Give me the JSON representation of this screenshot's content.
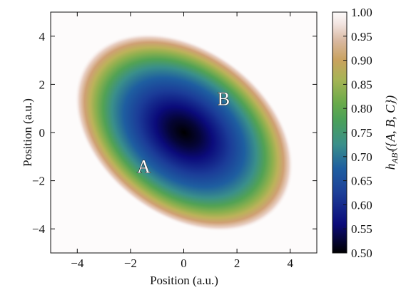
{
  "chart_data": {
    "type": "heatmap",
    "title": "",
    "xlabel": "Position (a.u.)",
    "ylabel": "Position (a.u.)",
    "xlim": [
      -5,
      5
    ],
    "ylim": [
      -5,
      5
    ],
    "x_ticks": [
      -4,
      -2,
      0,
      2,
      4
    ],
    "y_ticks": [
      -4,
      -2,
      0,
      2,
      4
    ],
    "colorbar": {
      "label": "h_AB'({A,B,C})",
      "label_main": "h",
      "label_sub": "AB'",
      "label_rest": "({A, B, C})",
      "range": [
        0.5,
        1.0
      ],
      "ticks": [
        "0.50",
        "0.55",
        "0.60",
        "0.65",
        "0.70",
        "0.75",
        "0.80",
        "0.85",
        "0.90",
        "0.95",
        "1.00"
      ],
      "colormap": "gist_earth"
    },
    "field": {
      "center": [
        0,
        0
      ],
      "major_axis_angle_deg": -40,
      "description": "value rises from ~0.50 at the center to ~1.00 outside a tilted elliptical region"
    },
    "annotations": [
      {
        "text": "A",
        "x": -1.5,
        "y": -1.4
      },
      {
        "text": "B",
        "x": 1.5,
        "y": 1.4
      }
    ],
    "grid": false
  },
  "colors": {
    "min": "#000000",
    "deep_blue": "#0b0b7a",
    "mid_blue": "#1e5ea0",
    "teal": "#3a8f8a",
    "green": "#58a44a",
    "olive": "#b2b458",
    "tan": "#cc9a6c",
    "max": "#fdfbfb"
  }
}
